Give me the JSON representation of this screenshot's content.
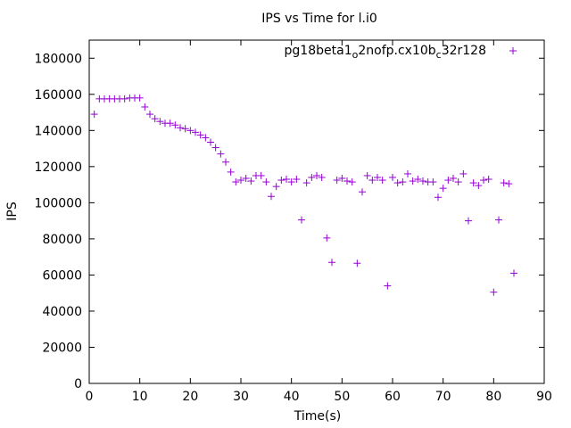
{
  "chart_data": {
    "type": "scatter",
    "title": "IPS vs Time for l.i0",
    "xlabel": "Time(s)",
    "ylabel": "IPS",
    "xlim": [
      0,
      90
    ],
    "ylim": [
      0,
      190000
    ],
    "xticks": [
      0,
      10,
      20,
      30,
      40,
      50,
      60,
      70,
      80,
      90
    ],
    "yticks": [
      0,
      20000,
      40000,
      60000,
      80000,
      100000,
      120000,
      140000,
      160000,
      180000
    ],
    "legend_position": "top-right",
    "series": [
      {
        "name_parts": [
          {
            "text": "pg18beta1",
            "sub": false
          },
          {
            "text": "o",
            "sub": true
          },
          {
            "text": "2nofp.cx10b",
            "sub": false
          },
          {
            "text": "c",
            "sub": true
          },
          {
            "text": "32r128",
            "sub": false
          }
        ],
        "color": "#9400d3",
        "marker": "plus",
        "points": [
          [
            1,
            149000
          ],
          [
            2,
            157500
          ],
          [
            3,
            157500
          ],
          [
            4,
            157500
          ],
          [
            5,
            157500
          ],
          [
            6,
            157500
          ],
          [
            7,
            157500
          ],
          [
            8,
            158000
          ],
          [
            9,
            158000
          ],
          [
            10,
            158000
          ],
          [
            11,
            153000
          ],
          [
            12,
            149000
          ],
          [
            13,
            146500
          ],
          [
            14,
            145000
          ],
          [
            15,
            144000
          ],
          [
            16,
            144000
          ],
          [
            17,
            143000
          ],
          [
            18,
            141500
          ],
          [
            19,
            141000
          ],
          [
            20,
            140000
          ],
          [
            21,
            139000
          ],
          [
            22,
            137500
          ],
          [
            23,
            136000
          ],
          [
            24,
            133500
          ],
          [
            25,
            130500
          ],
          [
            26,
            127000
          ],
          [
            27,
            122500
          ],
          [
            28,
            117000
          ],
          [
            29,
            111500
          ],
          [
            30,
            112500
          ],
          [
            31,
            113500
          ],
          [
            32,
            112000
          ],
          [
            33,
            115000
          ],
          [
            34,
            115000
          ],
          [
            35,
            111500
          ],
          [
            36,
            103500
          ],
          [
            37,
            109000
          ],
          [
            38,
            112500
          ],
          [
            39,
            113000
          ],
          [
            40,
            111500
          ],
          [
            41,
            113000
          ],
          [
            42,
            90500
          ],
          [
            43,
            111000
          ],
          [
            44,
            114000
          ],
          [
            45,
            115000
          ],
          [
            46,
            114000
          ],
          [
            47,
            80500
          ],
          [
            48,
            67000
          ],
          [
            49,
            112500
          ],
          [
            50,
            113500
          ],
          [
            51,
            112000
          ],
          [
            52,
            111500
          ],
          [
            53,
            66500
          ],
          [
            54,
            106000
          ],
          [
            55,
            115000
          ],
          [
            56,
            112500
          ],
          [
            57,
            114000
          ],
          [
            58,
            112500
          ],
          [
            59,
            54000
          ],
          [
            60,
            114000
          ],
          [
            61,
            111000
          ],
          [
            62,
            111500
          ],
          [
            63,
            116000
          ],
          [
            64,
            112000
          ],
          [
            65,
            113000
          ],
          [
            66,
            112000
          ],
          [
            67,
            111500
          ],
          [
            68,
            111500
          ],
          [
            69,
            103000
          ],
          [
            70,
            108000
          ],
          [
            71,
            112500
          ],
          [
            72,
            113500
          ],
          [
            73,
            111500
          ],
          [
            74,
            116000
          ],
          [
            75,
            90000
          ],
          [
            76,
            111000
          ],
          [
            77,
            109500
          ],
          [
            78,
            112500
          ],
          [
            79,
            113000
          ],
          [
            80,
            50500
          ],
          [
            81,
            90500
          ],
          [
            82,
            111000
          ],
          [
            83,
            110500
          ],
          [
            84,
            61000
          ]
        ]
      }
    ]
  }
}
